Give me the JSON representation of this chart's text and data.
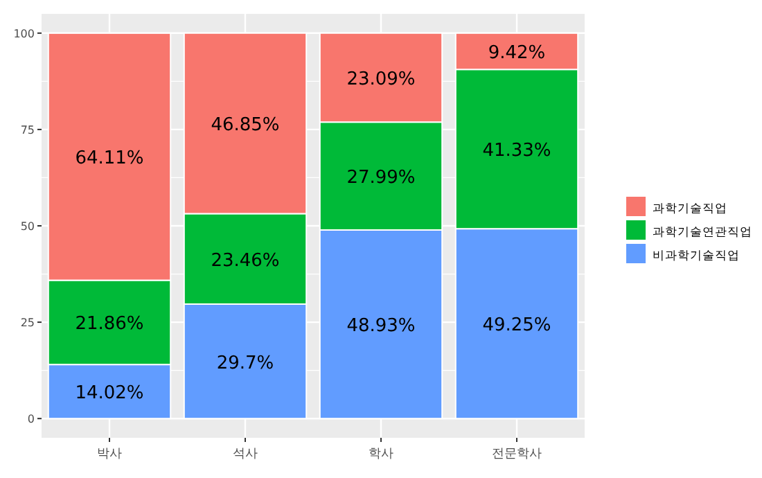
{
  "chart_data": {
    "type": "bar",
    "stacked": true,
    "categories": [
      "박사",
      "석사",
      "학사",
      "전문학사"
    ],
    "series": [
      {
        "name": "비과학기술직업",
        "color": "#619cff",
        "values": [
          14.02,
          29.7,
          48.93,
          49.25
        ],
        "value_labels": [
          "14.02%",
          "29.7%",
          "48.93%",
          "49.25%"
        ]
      },
      {
        "name": "과학기술연관직업",
        "color": "#00ba38",
        "values": [
          21.86,
          23.46,
          27.99,
          41.33
        ],
        "value_labels": [
          "21.86%",
          "23.46%",
          "27.99%",
          "41.33%"
        ]
      },
      {
        "name": "과학기술직업",
        "color": "#f8766d",
        "values": [
          64.11,
          46.85,
          23.09,
          9.42
        ],
        "value_labels": [
          "64.11%",
          "46.85%",
          "23.09%",
          "9.42%"
        ]
      }
    ],
    "ylim": [
      -5,
      105
    ],
    "yticks": [
      0,
      25,
      50,
      75,
      100
    ],
    "grid": true,
    "legend": "right"
  }
}
